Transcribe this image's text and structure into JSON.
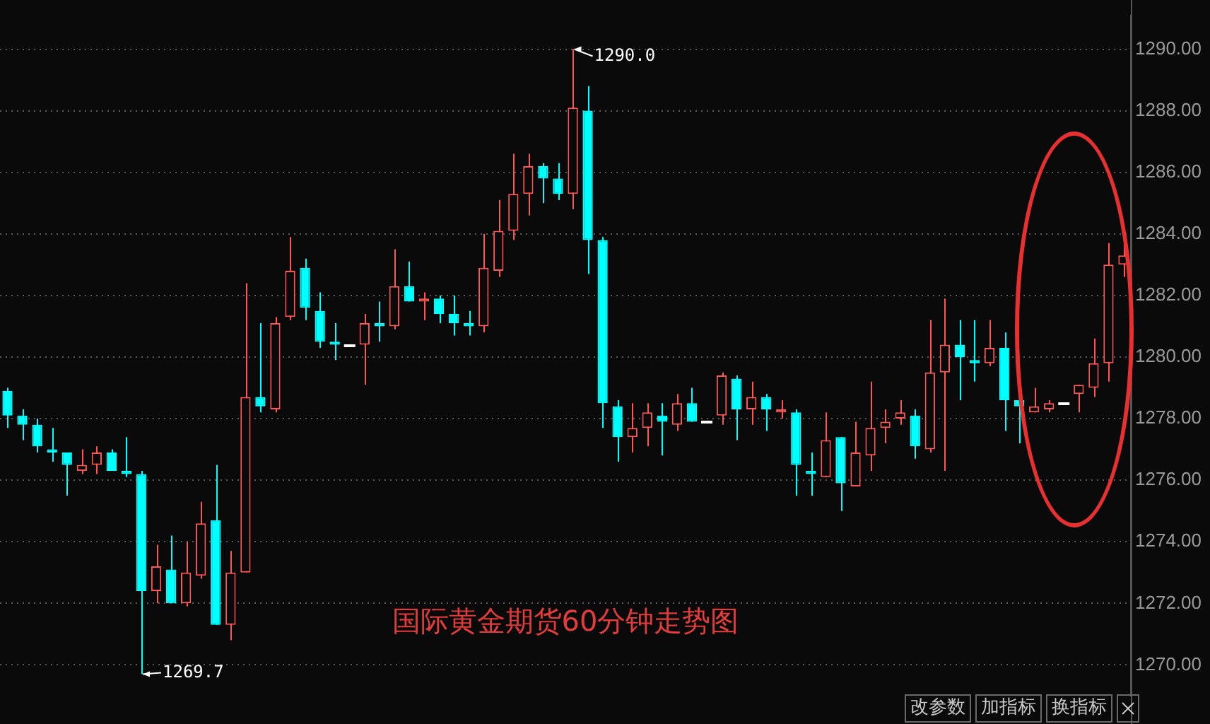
{
  "chart_data": {
    "type": "candlestick",
    "title": "国际黄金期货60分钟走势图",
    "categories": [
      null,
      null,
      null,
      null,
      null,
      null,
      null,
      null,
      null,
      null,
      null,
      null,
      null,
      null,
      null,
      null,
      null,
      null,
      null,
      null,
      null,
      null,
      null,
      null,
      null,
      null,
      null,
      null,
      null,
      null,
      null,
      null,
      null,
      null,
      null,
      null,
      null,
      null,
      null,
      null,
      null,
      null,
      null,
      null,
      null,
      null,
      null,
      null,
      null,
      null,
      null,
      null,
      null,
      null,
      null,
      null,
      null,
      null,
      null,
      null,
      null,
      null,
      null,
      null,
      null,
      null,
      null,
      null,
      null,
      null,
      null,
      null,
      null,
      null,
      null,
      null
    ],
    "ohlc": [
      [
        1278.9,
        1279.0,
        1277.7,
        1278.1
      ],
      [
        1278.1,
        1278.3,
        1277.3,
        1277.8
      ],
      [
        1277.8,
        1278.0,
        1276.9,
        1277.1
      ],
      [
        1277.0,
        1277.7,
        1276.6,
        1276.9
      ],
      [
        1276.9,
        1276.9,
        1275.5,
        1276.5
      ],
      [
        1276.3,
        1277.0,
        1276.2,
        1276.5
      ],
      [
        1276.5,
        1277.1,
        1276.2,
        1276.9
      ],
      [
        1276.9,
        1277.0,
        1276.3,
        1276.3
      ],
      [
        1276.3,
        1277.4,
        1276.1,
        1276.2
      ],
      [
        1276.2,
        1276.3,
        1269.7,
        1272.4
      ],
      [
        1272.4,
        1273.9,
        1272.0,
        1273.2
      ],
      [
        1273.1,
        1274.2,
        1272.0,
        1272.0
      ],
      [
        1272.0,
        1274.0,
        1271.9,
        1273.0
      ],
      [
        1272.9,
        1275.3,
        1272.8,
        1274.6
      ],
      [
        1274.7,
        1276.5,
        1271.3,
        1271.3
      ],
      [
        1271.3,
        1273.7,
        1270.8,
        1273.0
      ],
      [
        1273.0,
        1282.4,
        1273.0,
        1278.7
      ],
      [
        1278.7,
        1281.1,
        1278.2,
        1278.4
      ],
      [
        1278.3,
        1281.3,
        1278.2,
        1281.1
      ],
      [
        1281.3,
        1283.9,
        1281.2,
        1282.8
      ],
      [
        1282.9,
        1283.2,
        1281.2,
        1281.6
      ],
      [
        1281.5,
        1282.1,
        1280.3,
        1280.5
      ],
      [
        1280.5,
        1281.1,
        1279.9,
        1280.4
      ],
      [
        1280.4,
        1280.4,
        1280.4,
        1280.4
      ],
      [
        1280.4,
        1281.4,
        1279.1,
        1281.1
      ],
      [
        1281.1,
        1281.8,
        1280.5,
        1281.0
      ],
      [
        1281.0,
        1283.5,
        1280.9,
        1282.3
      ],
      [
        1282.3,
        1283.1,
        1281.8,
        1281.8
      ],
      [
        1281.8,
        1282.1,
        1281.2,
        1281.9
      ],
      [
        1281.9,
        1282.0,
        1281.1,
        1281.4
      ],
      [
        1281.4,
        1282.0,
        1280.7,
        1281.1
      ],
      [
        1281.1,
        1281.5,
        1280.7,
        1281.0
      ],
      [
        1281.0,
        1284.0,
        1280.8,
        1282.9
      ],
      [
        1282.8,
        1285.1,
        1282.6,
        1284.1
      ],
      [
        1284.1,
        1286.6,
        1283.8,
        1285.3
      ],
      [
        1285.3,
        1286.6,
        1284.6,
        1286.2
      ],
      [
        1286.2,
        1286.3,
        1285.0,
        1285.8
      ],
      [
        1285.8,
        1286.3,
        1285.1,
        1285.3
      ],
      [
        1285.3,
        1290.0,
        1284.8,
        1288.1
      ],
      [
        1288.0,
        1288.8,
        1282.7,
        1283.8
      ],
      [
        1283.8,
        1283.9,
        1277.7,
        1278.5
      ],
      [
        1278.4,
        1278.6,
        1276.6,
        1277.4
      ],
      [
        1277.4,
        1278.5,
        1276.9,
        1277.7
      ],
      [
        1277.7,
        1278.5,
        1277.1,
        1278.2
      ],
      [
        1278.1,
        1278.5,
        1276.8,
        1277.9
      ],
      [
        1277.8,
        1278.8,
        1277.6,
        1278.5
      ],
      [
        1278.5,
        1279.0,
        1277.9,
        1277.9
      ],
      [
        1277.9,
        1277.9,
        1277.9,
        1277.9
      ],
      [
        1278.1,
        1279.5,
        1277.8,
        1279.4
      ],
      [
        1279.3,
        1279.4,
        1277.3,
        1278.3
      ],
      [
        1278.3,
        1279.2,
        1277.8,
        1278.7
      ],
      [
        1278.7,
        1278.8,
        1277.6,
        1278.3
      ],
      [
        1278.2,
        1278.6,
        1278.0,
        1278.3
      ],
      [
        1278.2,
        1278.3,
        1275.5,
        1276.5
      ],
      [
        1276.3,
        1276.9,
        1275.5,
        1276.2
      ],
      [
        1276.1,
        1278.2,
        1276.1,
        1277.3
      ],
      [
        1277.4,
        1277.4,
        1275.0,
        1275.9
      ],
      [
        1275.8,
        1277.9,
        1275.8,
        1276.9
      ],
      [
        1276.8,
        1279.2,
        1276.3,
        1277.7
      ],
      [
        1277.7,
        1278.3,
        1277.2,
        1277.9
      ],
      [
        1278.0,
        1278.6,
        1277.8,
        1278.2
      ],
      [
        1278.1,
        1278.3,
        1276.7,
        1277.1
      ],
      [
        1277.0,
        1281.2,
        1276.9,
        1279.5
      ],
      [
        1279.5,
        1281.9,
        1276.3,
        1280.4
      ],
      [
        1280.4,
        1281.2,
        1278.6,
        1280.0
      ],
      [
        1279.9,
        1281.2,
        1279.2,
        1279.8
      ],
      [
        1279.8,
        1281.2,
        1279.7,
        1280.3
      ],
      [
        1280.3,
        1280.8,
        1277.6,
        1278.6
      ],
      [
        1278.6,
        1278.7,
        1277.2,
        1278.4
      ],
      [
        1278.2,
        1279.0,
        1278.2,
        1278.4
      ],
      [
        1278.3,
        1278.6,
        1278.2,
        1278.5
      ],
      [
        1278.5,
        1278.5,
        1278.5,
        1278.5
      ],
      [
        1278.8,
        1279.1,
        1278.2,
        1279.1
      ],
      [
        1279.0,
        1280.6,
        1278.7,
        1279.8
      ],
      [
        1279.8,
        1283.7,
        1279.2,
        1283.0
      ],
      [
        1283.0,
        1284.0,
        1282.6,
        1283.3
      ]
    ],
    "colors": [
      "#00ffff",
      "#00ffff",
      "#00ffff",
      "#00ffff",
      "#00ffff",
      "#ff5555",
      "#ff5555",
      "#00ffff",
      "#00ffff",
      "#00ffff",
      "#ff5555",
      "#00ffff",
      "#ff5555",
      "#ff5555",
      "#00ffff",
      "#ff5555",
      "#ff5555",
      "#00ffff",
      "#ff5555",
      "#ff5555",
      "#00ffff",
      "#00ffff",
      "#00ffff",
      "#ffffff",
      "#ff5555",
      "#00ffff",
      "#ff5555",
      "#00ffff",
      "#ff5555",
      "#00ffff",
      "#00ffff",
      "#00ffff",
      "#ff5555",
      "#ff5555",
      "#ff5555",
      "#ff5555",
      "#00ffff",
      "#00ffff",
      "#ff5555",
      "#00ffff",
      "#00ffff",
      "#00ffff",
      "#ff5555",
      "#ff5555",
      "#00ffff",
      "#ff5555",
      "#00ffff",
      "#ffffff",
      "#ff5555",
      "#00ffff",
      "#ff5555",
      "#00ffff",
      "#ff5555",
      "#00ffff",
      "#00ffff",
      "#ff5555",
      "#00ffff",
      "#ff5555",
      "#ff5555",
      "#ff5555",
      "#ff5555",
      "#00ffff",
      "#ff5555",
      "#ff5555",
      "#00ffff",
      "#00ffff",
      "#ff5555",
      "#00ffff",
      "#00ffff",
      "#ff5555",
      "#ff5555",
      "#ffffff",
      "#ff5555",
      "#ff5555",
      "#ff5555",
      "#ff5555"
    ],
    "ylim": [
      1269,
      1291.1
    ],
    "yticks": [
      {
        "value": 1270,
        "label": "1270.00"
      },
      {
        "value": 1272,
        "label": "1272.00"
      },
      {
        "value": 1274,
        "label": "1274.00"
      },
      {
        "value": 1276,
        "label": "1276.00"
      },
      {
        "value": 1278,
        "label": "1278.00"
      },
      {
        "value": 1280,
        "label": "1280.00"
      },
      {
        "value": 1282,
        "label": "1282.00"
      },
      {
        "value": 1284,
        "label": "1284.00"
      },
      {
        "value": 1286,
        "label": "1286.00"
      },
      {
        "value": 1288,
        "label": "1288.00"
      },
      {
        "value": 1290,
        "label": "1290.00"
      }
    ],
    "grid": "y",
    "tick_labels": "y",
    "legend": false,
    "annotations": [
      "1290.0",
      "1269.7",
      "改参数",
      "加指标",
      "换指标"
    ]
  }
}
